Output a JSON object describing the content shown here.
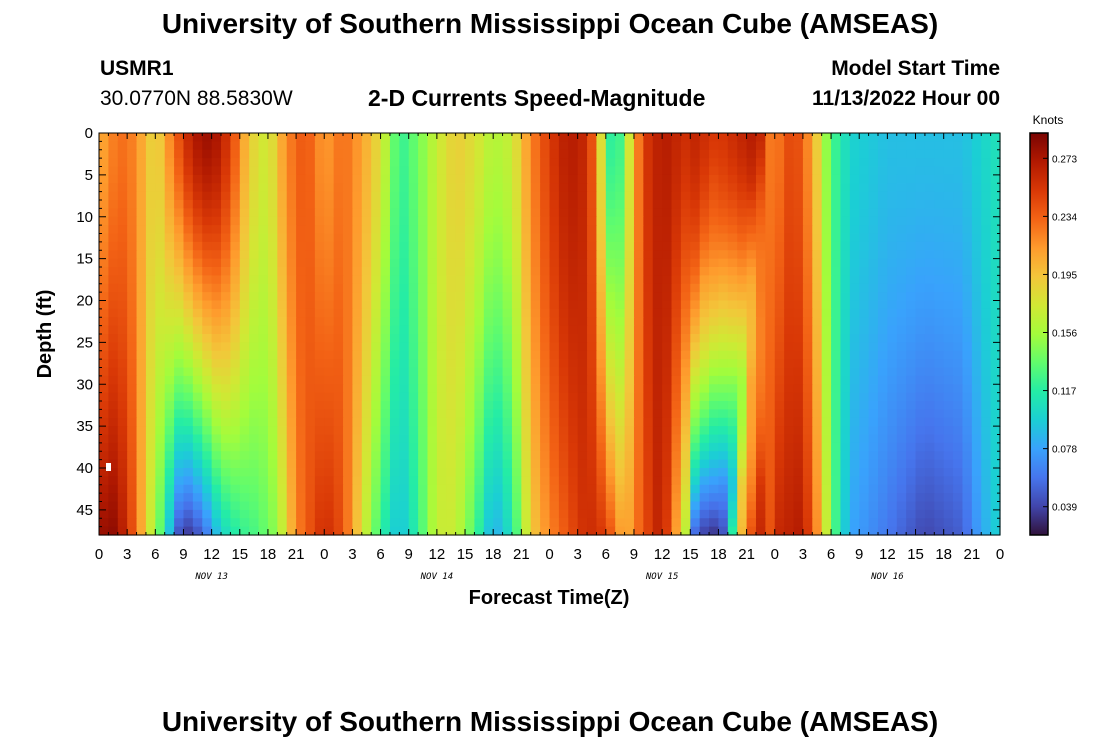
{
  "header": {
    "title": "University of Southern Mississippi Ocean Cube (AMSEAS)",
    "title_repeat": "University of Southern Mississippi Ocean Cube (AMSEAS)",
    "station": "USMR1",
    "coords": "30.0770N  88.5830W",
    "subtitle": "2-D Currents Speed-Magnitude",
    "model_start_label": "Model Start Time",
    "model_start_value": "11/13/2022 Hour 00"
  },
  "chart_data": {
    "type": "heatmap",
    "title": "2-D Currents Speed-Magnitude",
    "xlabel": "Forecast Time(Z)",
    "ylabel": "Depth (ft)",
    "x_range_hours": [
      0,
      96
    ],
    "y_range_ft": [
      0,
      48
    ],
    "x_tick_hours": [
      0,
      3,
      6,
      9,
      12,
      15,
      18,
      21,
      24,
      27,
      30,
      33,
      36,
      39,
      42,
      45,
      48,
      51,
      54,
      57,
      60,
      63,
      66,
      69,
      72,
      75,
      78,
      81,
      84,
      87,
      90,
      93,
      96
    ],
    "x_tick_labels": [
      "0",
      "3",
      "6",
      "9",
      "12",
      "15",
      "18",
      "21",
      "0",
      "3",
      "6",
      "9",
      "12",
      "15",
      "18",
      "21",
      "0",
      "3",
      "6",
      "9",
      "12",
      "15",
      "18",
      "21",
      "0",
      "3",
      "6",
      "9",
      "12",
      "15",
      "18",
      "21",
      "0"
    ],
    "y_tick_values": [
      0,
      5,
      10,
      15,
      20,
      25,
      30,
      35,
      40,
      45
    ],
    "y_tick_labels": [
      "0",
      "5",
      "10",
      "15",
      "20",
      "25",
      "30",
      "35",
      "40",
      "45"
    ],
    "day_labels": [
      {
        "text": "NOV 13",
        "hour": 12
      },
      {
        "text": "NOV 14",
        "hour": 36
      },
      {
        "text": "NOV 15",
        "hour": 60
      },
      {
        "text": "NOV 16",
        "hour": 84
      }
    ],
    "colorbar": {
      "unit": "Knots",
      "min": 0.02,
      "max": 0.29,
      "ticks": [
        0.039,
        0.078,
        0.117,
        0.156,
        0.195,
        0.234,
        0.273
      ],
      "tick_labels": [
        "0.039",
        "0.078",
        "0.117",
        "0.156",
        "0.195",
        "0.234",
        "0.273"
      ],
      "colormap": [
        "#30123b",
        "#4145ab",
        "#4675ed",
        "#39a2fc",
        "#1bcfd4",
        "#24eca6",
        "#61fc6c",
        "#a4fc3b",
        "#d1e834",
        "#f3c63a",
        "#fe9b2d",
        "#f36315",
        "#d93806",
        "#b11901",
        "#7a0402"
      ]
    },
    "surface_speed_knots_by_hour": [
      {
        "hour": 0,
        "v": 0.2
      },
      {
        "hour": 1,
        "v": 0.22
      },
      {
        "hour": 3,
        "v": 0.23
      },
      {
        "hour": 5,
        "v": 0.2
      },
      {
        "hour": 6,
        "v": 0.18
      },
      {
        "hour": 8,
        "v": 0.23
      },
      {
        "hour": 10,
        "v": 0.27
      },
      {
        "hour": 12,
        "v": 0.28
      },
      {
        "hour": 14,
        "v": 0.25
      },
      {
        "hour": 16,
        "v": 0.19
      },
      {
        "hour": 18,
        "v": 0.17
      },
      {
        "hour": 20,
        "v": 0.22
      },
      {
        "hour": 22,
        "v": 0.24
      },
      {
        "hour": 24,
        "v": 0.21
      },
      {
        "hour": 26,
        "v": 0.23
      },
      {
        "hour": 28,
        "v": 0.21
      },
      {
        "hour": 30,
        "v": 0.18
      },
      {
        "hour": 31,
        "v": 0.15
      },
      {
        "hour": 32,
        "v": 0.12
      },
      {
        "hour": 33,
        "v": 0.13
      },
      {
        "hour": 34,
        "v": 0.14
      },
      {
        "hour": 36,
        "v": 0.17
      },
      {
        "hour": 38,
        "v": 0.19
      },
      {
        "hour": 40,
        "v": 0.18
      },
      {
        "hour": 42,
        "v": 0.16
      },
      {
        "hour": 44,
        "v": 0.17
      },
      {
        "hour": 46,
        "v": 0.22
      },
      {
        "hour": 48,
        "v": 0.25
      },
      {
        "hour": 50,
        "v": 0.27
      },
      {
        "hour": 52,
        "v": 0.26
      },
      {
        "hour": 53,
        "v": 0.22
      },
      {
        "hour": 54,
        "v": 0.14
      },
      {
        "hour": 55,
        "v": 0.1
      },
      {
        "hour": 56,
        "v": 0.15
      },
      {
        "hour": 57,
        "v": 0.2
      },
      {
        "hour": 58,
        "v": 0.25
      },
      {
        "hour": 60,
        "v": 0.27
      },
      {
        "hour": 62,
        "v": 0.26
      },
      {
        "hour": 64,
        "v": 0.25
      },
      {
        "hour": 66,
        "v": 0.26
      },
      {
        "hour": 68,
        "v": 0.27
      },
      {
        "hour": 70,
        "v": 0.24
      },
      {
        "hour": 72,
        "v": 0.22
      },
      {
        "hour": 74,
        "v": 0.25
      },
      {
        "hour": 76,
        "v": 0.21
      },
      {
        "hour": 78,
        "v": 0.13
      },
      {
        "hour": 80,
        "v": 0.1
      },
      {
        "hour": 84,
        "v": 0.09
      },
      {
        "hour": 88,
        "v": 0.09
      },
      {
        "hour": 92,
        "v": 0.09
      },
      {
        "hour": 94,
        "v": 0.1
      },
      {
        "hour": 96,
        "v": 0.11
      }
    ],
    "bottom_speed_knots_by_hour": [
      {
        "hour": 0,
        "v": 0.27
      },
      {
        "hour": 1,
        "v": 0.29
      },
      {
        "hour": 3,
        "v": 0.26
      },
      {
        "hour": 5,
        "v": 0.19
      },
      {
        "hour": 6,
        "v": 0.15
      },
      {
        "hour": 7,
        "v": 0.12
      },
      {
        "hour": 8,
        "v": 0.06
      },
      {
        "hour": 9,
        "v": 0.03
      },
      {
        "hour": 11,
        "v": 0.05
      },
      {
        "hour": 13,
        "v": 0.1
      },
      {
        "hour": 15,
        "v": 0.12
      },
      {
        "hour": 17,
        "v": 0.13
      },
      {
        "hour": 19,
        "v": 0.15
      },
      {
        "hour": 21,
        "v": 0.22
      },
      {
        "hour": 24,
        "v": 0.26
      },
      {
        "hour": 26,
        "v": 0.24
      },
      {
        "hour": 28,
        "v": 0.18
      },
      {
        "hour": 30,
        "v": 0.12
      },
      {
        "hour": 32,
        "v": 0.09
      },
      {
        "hour": 34,
        "v": 0.12
      },
      {
        "hour": 36,
        "v": 0.17
      },
      {
        "hour": 38,
        "v": 0.17
      },
      {
        "hour": 40,
        "v": 0.13
      },
      {
        "hour": 42,
        "v": 0.08
      },
      {
        "hour": 44,
        "v": 0.11
      },
      {
        "hour": 46,
        "v": 0.19
      },
      {
        "hour": 48,
        "v": 0.22
      },
      {
        "hour": 50,
        "v": 0.24
      },
      {
        "hour": 52,
        "v": 0.26
      },
      {
        "hour": 54,
        "v": 0.25
      },
      {
        "hour": 56,
        "v": 0.2
      },
      {
        "hour": 58,
        "v": 0.24
      },
      {
        "hour": 60,
        "v": 0.27
      },
      {
        "hour": 62,
        "v": 0.19
      },
      {
        "hour": 64,
        "v": 0.09
      },
      {
        "hour": 66,
        "v": 0.04
      },
      {
        "hour": 68,
        "v": 0.03
      },
      {
        "hour": 69,
        "v": 0.06
      },
      {
        "hour": 70,
        "v": 0.18
      },
      {
        "hour": 72,
        "v": 0.26
      },
      {
        "hour": 75,
        "v": 0.27
      },
      {
        "hour": 77,
        "v": 0.2
      },
      {
        "hour": 78,
        "v": 0.14
      },
      {
        "hour": 80,
        "v": 0.08
      },
      {
        "hour": 84,
        "v": 0.06
      },
      {
        "hour": 88,
        "v": 0.04
      },
      {
        "hour": 92,
        "v": 0.05
      },
      {
        "hour": 94,
        "v": 0.08
      },
      {
        "hour": 96,
        "v": 0.1
      }
    ]
  }
}
